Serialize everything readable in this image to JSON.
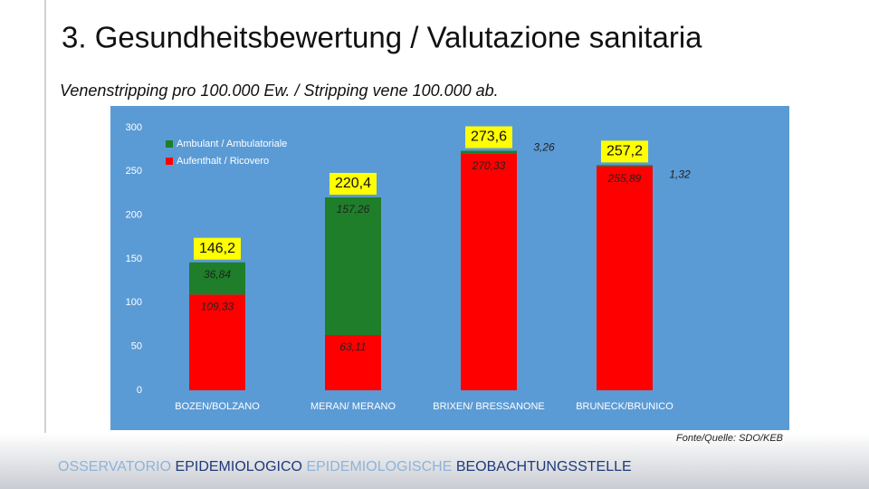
{
  "slide": {
    "title": "3. Gesundheitsbewertung / Valutazione sanitaria",
    "subtitle": "Venenstripping pro 100.000 Ew. / Stripping vene 100.000 ab.",
    "source": "Fonte/Quelle: SDO/KEB",
    "footer": [
      {
        "text": "OSSERVATORIO",
        "color": "#8fb3d9"
      },
      {
        "text": "EPIDEMIOLOGICO",
        "color": "#1f3a7a"
      },
      {
        "text": "EPIDEMIOLOGISCHE",
        "color": "#8fb3d9"
      },
      {
        "text": "BEOBACHTUNGSSTELLE",
        "color": "#1f3a7a"
      }
    ]
  },
  "chart_data": {
    "type": "stacked_bar",
    "categories": [
      "BOZEN/BOLZANO",
      "MERAN/ MERANO",
      "BRIXEN/ BRESSANONE",
      "BRUNECK/BRUNICO"
    ],
    "series": [
      {
        "name": "Aufenthalt / Ricovero",
        "color": "#ff0000",
        "values": [
          109.33,
          63.11,
          270.33,
          255.89
        ],
        "value_labels": [
          "109,33",
          "63,11",
          "270,33",
          "255,89"
        ]
      },
      {
        "name": "Ambulant / Ambulatoriale",
        "color": "#1e7e2a",
        "values": [
          36.84,
          157.26,
          3.26,
          1.32
        ],
        "value_labels": [
          "36,84",
          "157,26",
          "3,26",
          "1,32"
        ]
      }
    ],
    "totals": {
      "values": [
        146.2,
        220.4,
        273.6,
        257.2
      ],
      "value_labels": [
        "146,2",
        "220,4",
        "273,6",
        "257,2"
      ],
      "color": "#ffff00"
    },
    "ylim": [
      0,
      300
    ],
    "yticks": [
      0,
      50,
      100,
      150,
      200,
      250,
      300
    ]
  }
}
